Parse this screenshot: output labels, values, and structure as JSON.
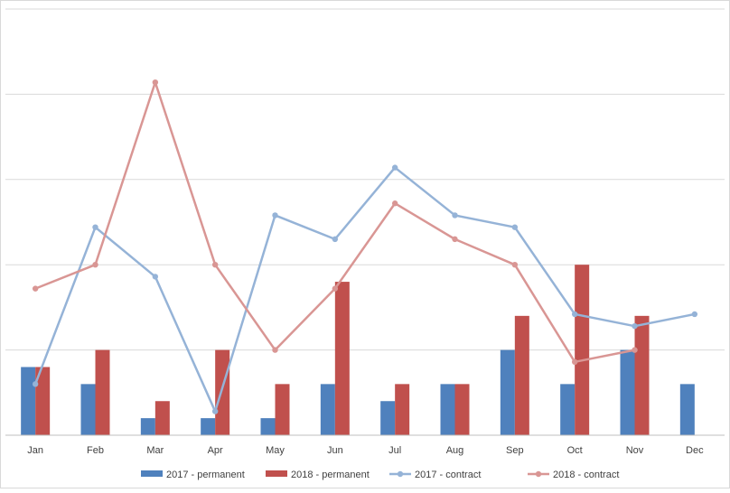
{
  "chart_data": {
    "type": "bar",
    "categories": [
      "Jan",
      "Feb",
      "Mar",
      "Apr",
      "May",
      "Jun",
      "Jul",
      "Aug",
      "Sep",
      "Oct",
      "Nov",
      "Dec"
    ],
    "ylim": [
      0,
      25
    ],
    "grid": true,
    "legend": "bottom",
    "series": [
      {
        "name": "2017 - permanent",
        "kind": "bar",
        "color": "#4f81bd",
        "values": [
          4,
          3,
          1,
          1,
          1,
          3,
          2,
          3,
          5,
          3,
          5,
          3
        ]
      },
      {
        "name": "2018 - permanent",
        "kind": "bar",
        "color": "#c0504d",
        "values": [
          4,
          5,
          2,
          5,
          3,
          9,
          3,
          3,
          7,
          10,
          7,
          null
        ]
      },
      {
        "name": "2017 - contract",
        "kind": "line",
        "color": "#95b3d7",
        "values": [
          3,
          12.2,
          9.3,
          1.4,
          12.9,
          11.5,
          15.7,
          12.9,
          12.2,
          7.1,
          6.4,
          7.1
        ]
      },
      {
        "name": "2018 - contract",
        "kind": "line",
        "color": "#d99694",
        "values": [
          8.6,
          10,
          20.7,
          10,
          5,
          8.6,
          13.6,
          11.5,
          10,
          4.3,
          5,
          null
        ]
      }
    ]
  }
}
